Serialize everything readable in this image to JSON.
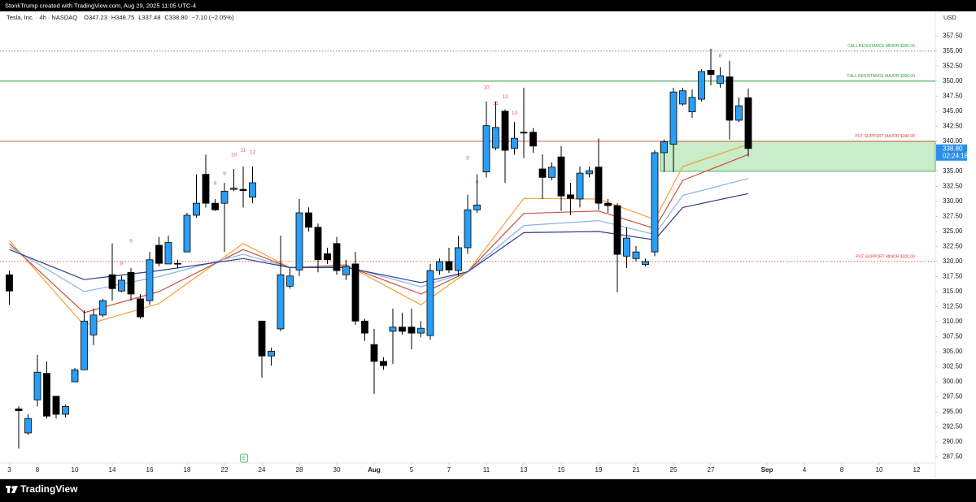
{
  "chart_data": {
    "type": "candlestick",
    "source": "StonkTrump created with TradingView.com, Aug 29, 2025 11:05 UTC-4",
    "symbol": "Tesla, Inc. · 4h · NASDAQ",
    "ohlc": [
      "O347.23",
      "H348.75",
      "L337.48",
      "C338.80",
      "−7.10 (−2.05%)"
    ],
    "currency": "USD",
    "brand": "TradingView",
    "up_color": "#2a9df4",
    "down_color": "#000000",
    "open": [
      317.8,
      295.5,
      291.5,
      297.0,
      301.4,
      297.6,
      294.6,
      300.0,
      302.0,
      307.8,
      311.1,
      317.8,
      315.1,
      318.2,
      313.8,
      313.5,
      322.7,
      319.6,
      319.7,
      321.6,
      327.7,
      334.5,
      329.7,
      329.7,
      332.0,
      332.0,
      330.7,
      310.1,
      304.3,
      308.8,
      315.9,
      318.6,
      328.1,
      325.7,
      321.3,
      323.0,
      317.8,
      319.6,
      310.1,
      306.2,
      303.4,
      308.4,
      309.1,
      309.1,
      308.1,
      307.7,
      318.5,
      320.0,
      318.5,
      322.3,
      328.6,
      334.9,
      338.9,
      345.0,
      338.8,
      341.5,
      341.5,
      335.4,
      334.0,
      337.4,
      331.1,
      330.4,
      334.6,
      335.7,
      329.7,
      329.3,
      320.9,
      320.5,
      319.5,
      321.6,
      338.1,
      339.5,
      346.2,
      344.9,
      347.0,
      351.8,
      349.6,
      350.7,
      343.5,
      347.23
    ],
    "high": [
      318.5,
      295.9,
      294.6,
      304.5,
      303.4,
      297.6,
      296.2,
      302.3,
      311.9,
      312.2,
      313.8,
      323.0,
      317.6,
      318.9,
      314.6,
      321.6,
      324.1,
      324.3,
      320.3,
      328.1,
      334.5,
      337.8,
      330.4,
      333.1,
      335.4,
      335.8,
      335.8,
      310.1,
      305.7,
      324.3,
      318.9,
      330.4,
      329.0,
      326.3,
      322.3,
      324.1,
      320.3,
      321.6,
      310.5,
      308.8,
      304.1,
      312.2,
      311.5,
      312.2,
      310.1,
      319.6,
      320.5,
      322.3,
      324.3,
      331.1,
      334.5,
      346.6,
      346.6,
      345.3,
      343.2,
      348.9,
      342.2,
      337.8,
      336.5,
      339.2,
      333.1,
      335.8,
      335.8,
      340.5,
      330.4,
      329.7,
      325.7,
      322.6,
      320.5,
      338.5,
      340.3,
      348.9,
      348.9,
      348.6,
      352.0,
      355.4,
      352.3,
      353.4,
      347.3,
      348.75
    ],
    "low": [
      312.8,
      288.9,
      291.2,
      295.9,
      293.9,
      293.9,
      294.1,
      300.0,
      302.0,
      306.1,
      310.8,
      313.5,
      314.9,
      313.5,
      310.5,
      312.8,
      319.2,
      319.6,
      318.9,
      321.6,
      327.3,
      329.0,
      328.4,
      321.6,
      331.7,
      329.0,
      329.7,
      300.7,
      302.7,
      308.4,
      315.5,
      317.6,
      325.0,
      318.2,
      319.6,
      317.8,
      316.9,
      309.5,
      306.8,
      298.0,
      302.0,
      303.0,
      307.8,
      305.4,
      307.4,
      307.0,
      317.8,
      318.1,
      317.6,
      321.3,
      328.1,
      334.0,
      338.5,
      333.1,
      337.8,
      337.2,
      338.1,
      330.4,
      333.5,
      328.4,
      327.7,
      329.0,
      334.0,
      328.6,
      328.1,
      314.9,
      318.9,
      320.0,
      319.2,
      320.9,
      334.9,
      334.9,
      345.9,
      343.9,
      346.6,
      349.3,
      348.9,
      340.3,
      343.2,
      337.48
    ],
    "close": [
      315.1,
      295.2,
      293.9,
      301.6,
      294.3,
      294.6,
      295.9,
      302.0,
      310.1,
      311.1,
      313.5,
      315.5,
      316.9,
      314.6,
      310.8,
      320.3,
      319.7,
      323.2,
      319.6,
      327.7,
      329.7,
      329.7,
      328.6,
      331.7,
      332.2,
      331.8,
      333.1,
      304.3,
      305.1,
      317.8,
      317.6,
      328.1,
      325.7,
      320.3,
      320.3,
      318.5,
      319.2,
      310.1,
      308.1,
      303.4,
      302.7,
      309.1,
      308.4,
      308.1,
      308.9,
      318.5,
      320.0,
      318.6,
      322.3,
      328.6,
      329.4,
      342.6,
      342.3,
      338.5,
      340.5,
      341.4,
      339.2,
      334.0,
      335.7,
      330.9,
      330.5,
      334.7,
      335.1,
      329.7,
      329.3,
      321.2,
      323.9,
      321.6,
      320.0,
      338.1,
      339.9,
      348.2,
      348.4,
      347.3,
      351.6,
      351.1,
      350.9,
      343.5,
      345.9,
      338.8
    ],
    "series": [
      {
        "color": "#f3a23a",
        "x": [
          0,
          8,
          16,
          25,
          30,
          36,
          44,
          49,
          55,
          63,
          69,
          72,
          79
        ],
        "values": [
          323.5,
          309.4,
          313.0,
          323.0,
          319.0,
          319.5,
          312.8,
          318.3,
          330.5,
          330.4,
          327.0,
          335.8,
          339.5
        ]
      },
      {
        "color": "#c9503f",
        "x": [
          0,
          8,
          16,
          25,
          30,
          36,
          44,
          49,
          55,
          63,
          69,
          72,
          79
        ],
        "values": [
          323.0,
          311.5,
          315.0,
          322.0,
          319.0,
          319.3,
          314.6,
          318.3,
          328.0,
          328.4,
          325.5,
          333.5,
          337.8
        ]
      },
      {
        "color": "#8fb3e2",
        "x": [
          0,
          8,
          16,
          25,
          30,
          36,
          44,
          49,
          55,
          63,
          69,
          72,
          79
        ],
        "values": [
          322.5,
          315.0,
          317.5,
          321.2,
          319.0,
          319.2,
          315.8,
          318.3,
          326.0,
          326.8,
          324.5,
          331.0,
          333.8
        ]
      },
      {
        "color": "#2f3f8f",
        "x": [
          0,
          8,
          16,
          25,
          30,
          36,
          44,
          49,
          55,
          63,
          69,
          72,
          79
        ],
        "values": [
          322.0,
          317.0,
          318.5,
          320.5,
          319.0,
          319.0,
          316.5,
          318.3,
          324.8,
          325.0,
          323.6,
          329.0,
          331.3
        ]
      }
    ],
    "levels": [
      {
        "value": 355,
        "label": "CALL RESISTANCE MINOR $355.00",
        "color": "#2e9e3e",
        "line_color": "#888888",
        "style": "dotted"
      },
      {
        "value": 350,
        "label": "CALL RESISTANCE MAJOR $350.00",
        "color": "#2e9e3e",
        "line_color": "#2e9e3e",
        "style": "solid"
      },
      {
        "value": 340,
        "label": "PUT SUPPORT MAJOR $340.00",
        "color": "#d9443a",
        "line_color": "#d9443a",
        "style": "solid"
      },
      {
        "value": 320,
        "label": "PUT SUPPORT MINOR $320.00",
        "color": "#d9443a",
        "line_color": "#d9443a",
        "style": "dotted"
      }
    ],
    "zone": {
      "y": [
        335,
        340
      ],
      "x_start": 69.6,
      "color": "#c9ecc9"
    },
    "last_price": {
      "value": 338.8,
      "label": "338.80",
      "countdown": "02:24:18",
      "color": "#2a8ee8"
    },
    "annotations": [
      {
        "text": "8",
        "x": 12,
        "y": 319.6
      },
      {
        "text": "9",
        "x": 13,
        "y": 323.4
      },
      {
        "text": "8",
        "x": 22,
        "y": 333.0
      },
      {
        "text": "9",
        "x": 23,
        "y": 334.6
      },
      {
        "text": "10",
        "x": 24,
        "y": 337.7
      },
      {
        "text": "11",
        "x": 25,
        "y": 338.5
      },
      {
        "text": "12",
        "x": 26,
        "y": 338.1
      },
      {
        "text": "8",
        "x": 49,
        "y": 337.2
      },
      {
        "text": "9",
        "x": 50,
        "y": 333.1
      },
      {
        "text": "10",
        "x": 51,
        "y": 348.9
      },
      {
        "text": "11",
        "x": 52,
        "y": 346.3
      },
      {
        "text": "12",
        "x": 53,
        "y": 347.4
      },
      {
        "text": "13",
        "x": 54,
        "y": 344.7
      },
      {
        "text": "8",
        "x": 76,
        "y": 354.2
      }
    ],
    "earnings": {
      "text": "E",
      "x": 25.1
    },
    "xlim": [
      -1,
      99
    ],
    "ylim": [
      286.5,
      361.6
    ],
    "xticks": [
      {
        "value": 0,
        "label": "3"
      },
      {
        "value": 3,
        "label": "8"
      },
      {
        "value": 7,
        "label": "10"
      },
      {
        "value": 11,
        "label": "14"
      },
      {
        "value": 15,
        "label": "16"
      },
      {
        "value": 19,
        "label": "18"
      },
      {
        "value": 23,
        "label": "22"
      },
      {
        "value": 27,
        "label": "24"
      },
      {
        "value": 31,
        "label": "28"
      },
      {
        "value": 35,
        "label": "30"
      },
      {
        "value": 39,
        "label": "Aug"
      },
      {
        "value": 43,
        "label": "5"
      },
      {
        "value": 47,
        "label": "7"
      },
      {
        "value": 51,
        "label": "11"
      },
      {
        "value": 55,
        "label": "13"
      },
      {
        "value": 59,
        "label": "15"
      },
      {
        "value": 63,
        "label": "19"
      },
      {
        "value": 67,
        "label": "21"
      },
      {
        "value": 71,
        "label": "25"
      },
      {
        "value": 75,
        "label": "27"
      },
      {
        "value": 81,
        "label": "Sep"
      },
      {
        "value": 85,
        "label": "4"
      },
      {
        "value": 89,
        "label": "8"
      },
      {
        "value": 93,
        "label": "10"
      },
      {
        "value": 97,
        "label": "12"
      }
    ],
    "yticks": [
      {
        "value": 287.5,
        "label": "287.50"
      },
      {
        "value": 290,
        "label": "290.00"
      },
      {
        "value": 292.5,
        "label": "292.50"
      },
      {
        "value": 295,
        "label": "295.00"
      },
      {
        "value": 297.5,
        "label": "297.50"
      },
      {
        "value": 300,
        "label": "300.00"
      },
      {
        "value": 302.5,
        "label": "302.50"
      },
      {
        "value": 305,
        "label": "305.00"
      },
      {
        "value": 307.5,
        "label": "307.50"
      },
      {
        "value": 310,
        "label": "310.00"
      },
      {
        "value": 312.5,
        "label": "312.50"
      },
      {
        "value": 315,
        "label": "315.00"
      },
      {
        "value": 317.5,
        "label": "317.50"
      },
      {
        "value": 320,
        "label": "320.00"
      },
      {
        "value": 322.5,
        "label": "322.50"
      },
      {
        "value": 325,
        "label": "325.00"
      },
      {
        "value": 327.5,
        "label": "327.50"
      },
      {
        "value": 330,
        "label": "330.00"
      },
      {
        "value": 332.5,
        "label": "332.50"
      },
      {
        "value": 335,
        "label": "335.00"
      },
      {
        "value": 337.5,
        "label": "337.50"
      },
      {
        "value": 340,
        "label": "340.00"
      },
      {
        "value": 342.5,
        "label": "342.50"
      },
      {
        "value": 345,
        "label": "345.00"
      },
      {
        "value": 347.5,
        "label": "347.50"
      },
      {
        "value": 350,
        "label": "350.00"
      },
      {
        "value": 352.5,
        "label": "352.50"
      },
      {
        "value": 355,
        "label": "355.00"
      },
      {
        "value": 357.5,
        "label": "357.50"
      }
    ]
  }
}
